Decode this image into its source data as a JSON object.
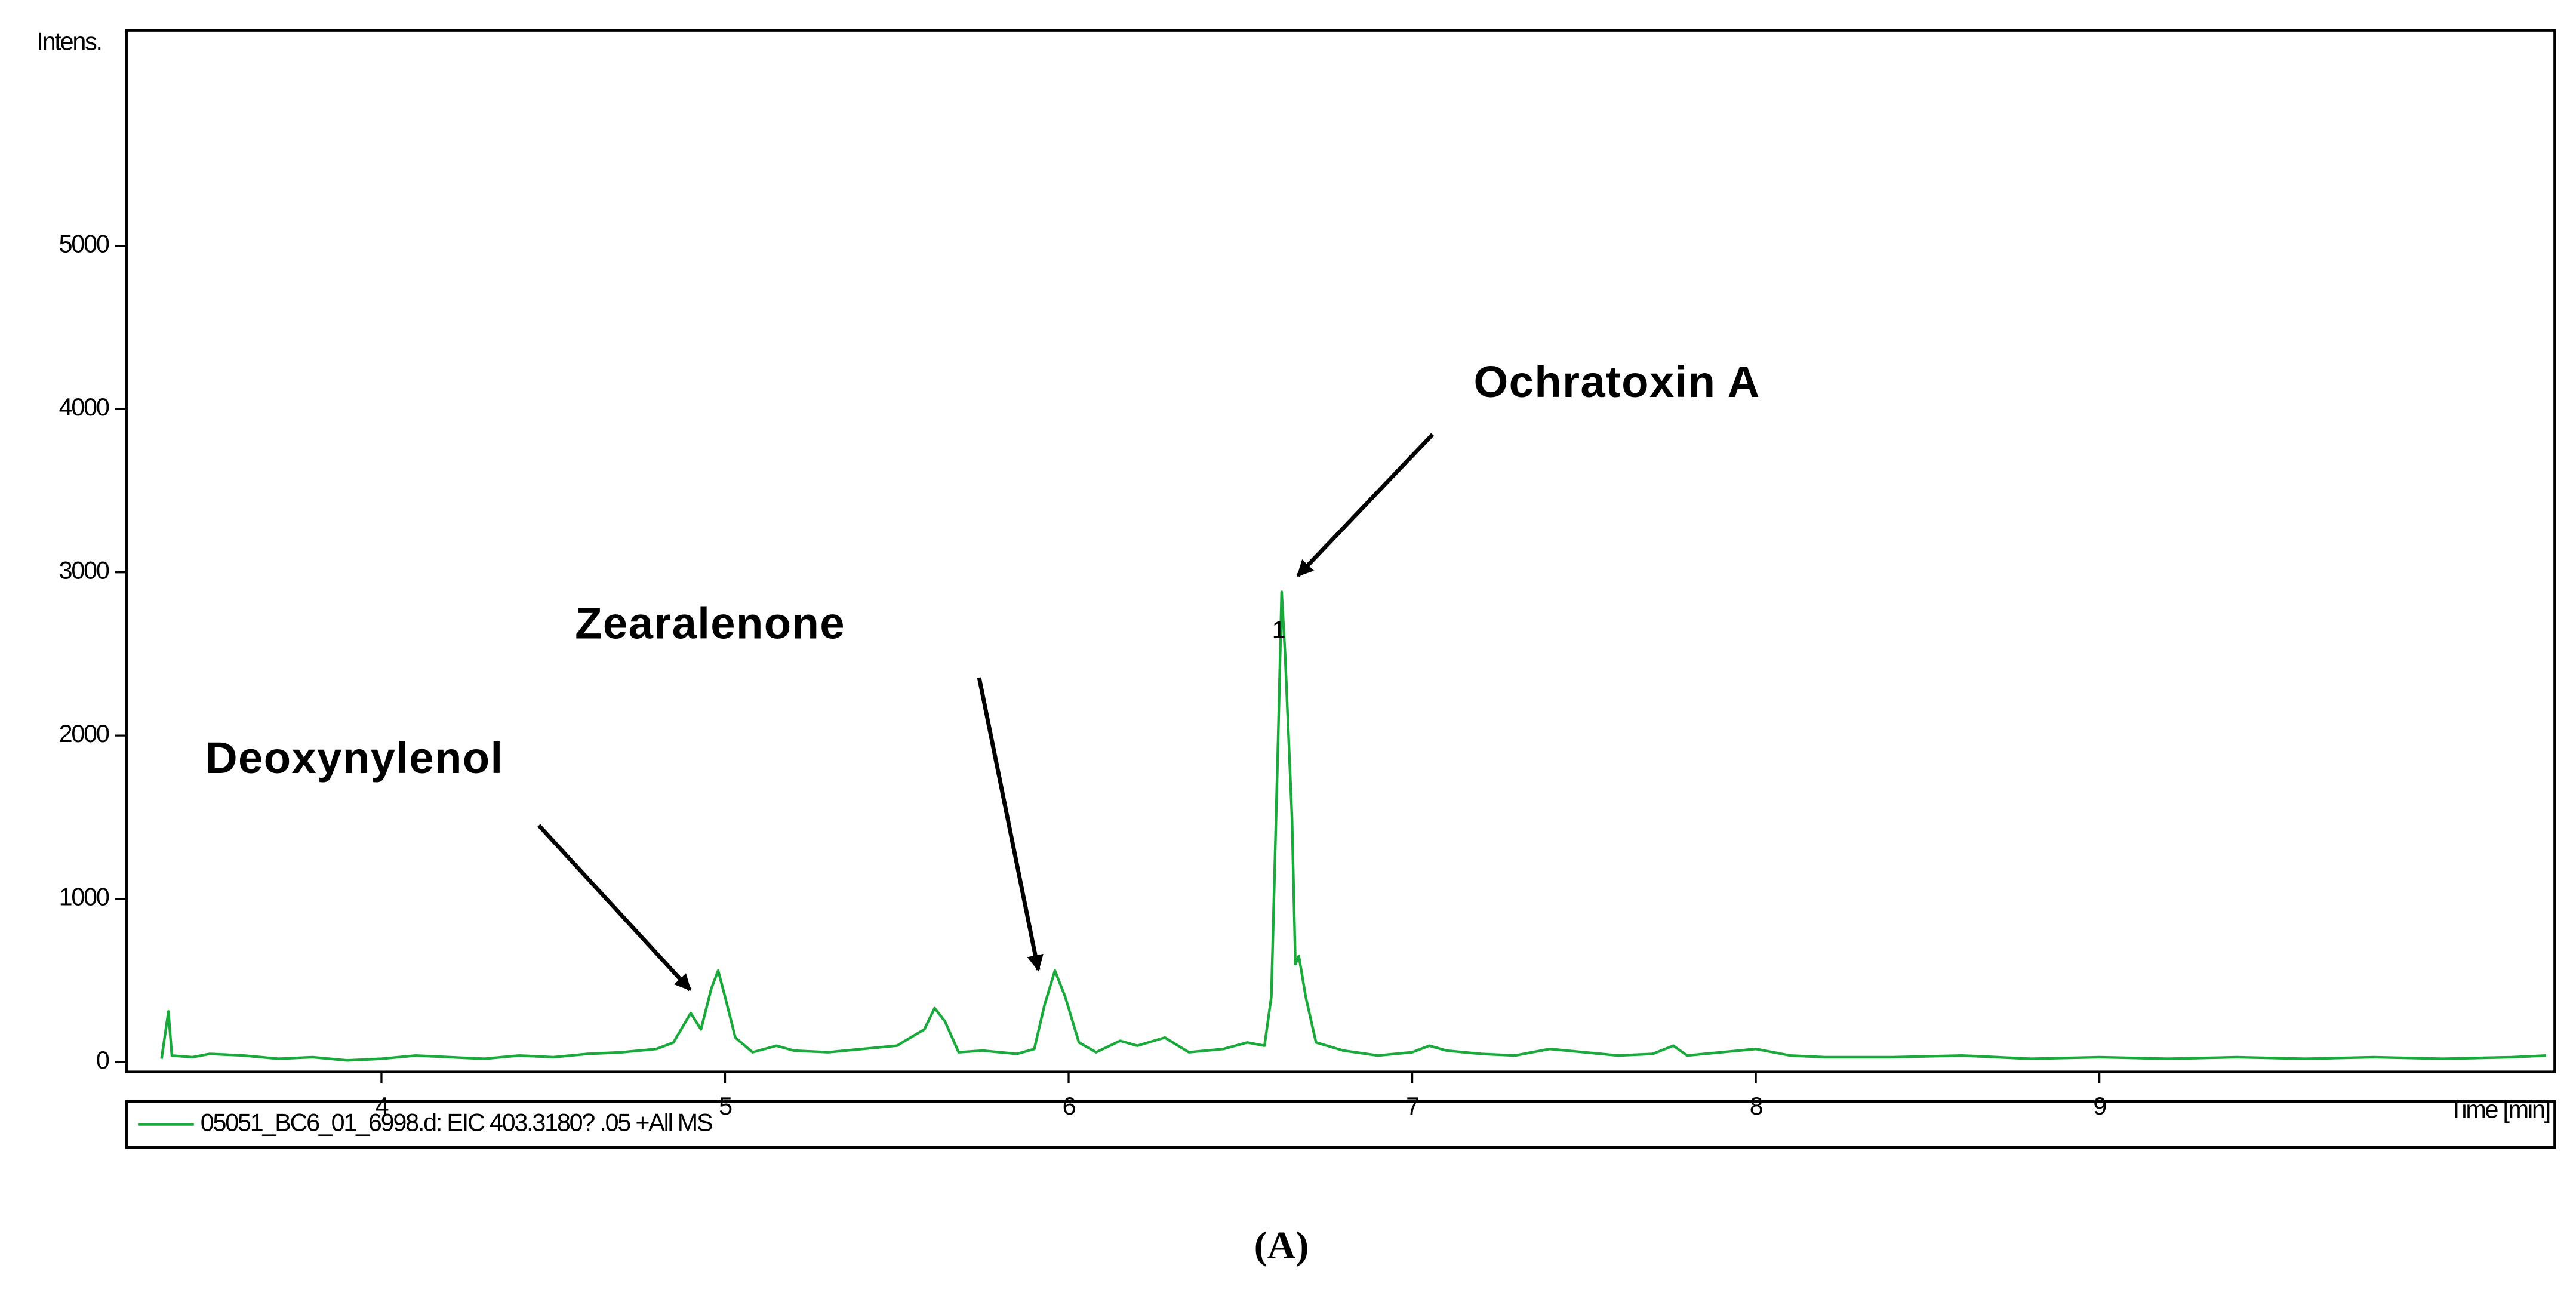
{
  "chart_data": {
    "type": "line",
    "y_label": "Intens.",
    "x_label": "Time [min]",
    "caption": "(A)",
    "xlim": [
      3.258,
      10.325
    ],
    "ylim": [
      -60,
      6320
    ],
    "xticks": [
      4,
      5,
      6,
      7,
      8,
      9
    ],
    "yticks": [
      0,
      1000,
      2000,
      3000,
      4000,
      5000
    ],
    "legend": "bottom",
    "annotations": [
      "Deoxynylenol",
      "Zearalenone",
      "Ochratoxin A",
      "1"
    ],
    "x": [
      3.36,
      3.38,
      3.39,
      3.45,
      3.5,
      3.6,
      3.7,
      3.8,
      3.9,
      4.0,
      4.1,
      4.2,
      4.3,
      4.4,
      4.5,
      4.6,
      4.7,
      4.8,
      4.85,
      4.9,
      4.93,
      4.96,
      4.98,
      5.0,
      5.03,
      5.08,
      5.15,
      5.2,
      5.3,
      5.4,
      5.5,
      5.58,
      5.61,
      5.64,
      5.68,
      5.75,
      5.85,
      5.9,
      5.93,
      5.96,
      5.99,
      6.03,
      6.08,
      6.15,
      6.2,
      6.28,
      6.35,
      6.45,
      6.52,
      6.57,
      6.59,
      6.61,
      6.62,
      6.63,
      6.65,
      6.66,
      6.67,
      6.69,
      6.72,
      6.8,
      6.9,
      7.0,
      7.05,
      7.1,
      7.2,
      7.3,
      7.4,
      7.5,
      7.6,
      7.7,
      7.76,
      7.8,
      7.9,
      8.0,
      8.1,
      8.2,
      8.4,
      8.6,
      8.8,
      9.0,
      9.2,
      9.4,
      9.6,
      9.8,
      10.0,
      10.2,
      10.3
    ],
    "series": [
      {
        "name": "05051_BC6_01_6998.d: EIC 403.3180? .05 +All MS",
        "color": "#1aaa3c",
        "values": [
          20,
          310,
          40,
          30,
          50,
          40,
          20,
          30,
          10,
          20,
          40,
          30,
          20,
          40,
          30,
          50,
          60,
          80,
          120,
          300,
          200,
          450,
          560,
          400,
          150,
          60,
          100,
          70,
          60,
          80,
          100,
          200,
          330,
          250,
          60,
          70,
          50,
          80,
          350,
          560,
          400,
          120,
          60,
          130,
          100,
          150,
          60,
          80,
          120,
          100,
          400,
          2000,
          2880,
          2500,
          1500,
          600,
          650,
          400,
          120,
          70,
          40,
          60,
          100,
          70,
          50,
          40,
          80,
          60,
          40,
          50,
          100,
          40,
          60,
          80,
          40,
          30,
          30,
          40,
          20,
          30,
          20,
          30,
          20,
          30,
          20,
          30,
          40
        ]
      }
    ]
  }
}
